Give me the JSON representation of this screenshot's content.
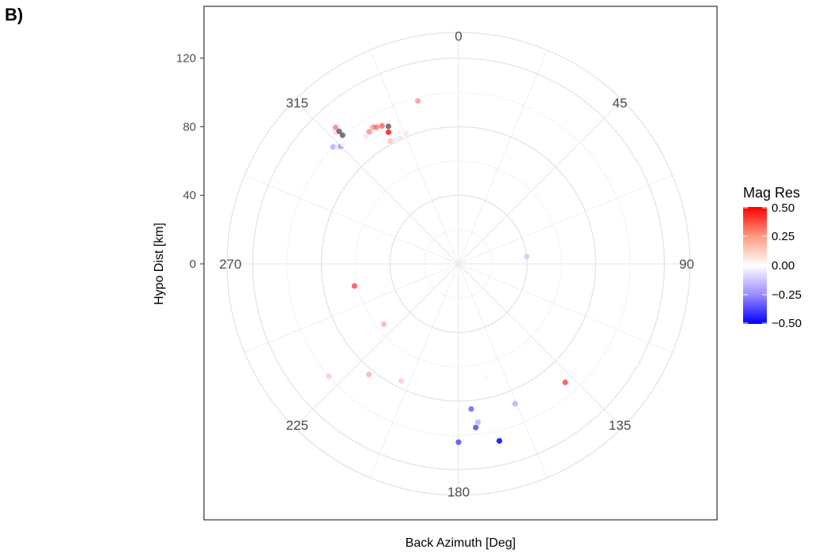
{
  "panel_label": "B)",
  "chart_data": {
    "type": "scatter",
    "coordinate_system": "polar",
    "xlabel": "Back Azimuth [Deg]",
    "ylabel": "Hypo Dist [km]",
    "y_ticks": [
      0,
      40,
      80,
      120
    ],
    "y_tick_labels": [
      "0",
      "40",
      "80",
      "120"
    ],
    "angle_ticks": [
      0,
      45,
      90,
      135,
      180,
      225,
      270,
      315
    ],
    "angle_tick_labels": [
      "0",
      "45",
      "90",
      "135",
      "180",
      "225",
      "270",
      "315"
    ],
    "legend": {
      "title": "Mag Res",
      "breaks": [
        0.5,
        0.25,
        0.0,
        -0.25,
        -0.5
      ],
      "labels": [
        "0.50",
        "0.25",
        "0.00",
        "−0.25",
        "−0.50"
      ],
      "low_color": "#0000ff",
      "mid_color": "#ffffff",
      "high_color": "#ff0000",
      "na_color": "#606060"
    },
    "points": [
      {
        "az": 346,
        "dist": 98,
        "res": 0.2
      },
      {
        "az": 318,
        "dist": 107,
        "res": 0.25
      },
      {
        "az": 317,
        "dist": 105,
        "res": 0.08
      },
      {
        "az": 318,
        "dist": 104,
        "res": null
      },
      {
        "az": 318,
        "dist": 101,
        "res": null
      },
      {
        "az": 313,
        "dist": 100,
        "res": -0.15
      },
      {
        "az": 314,
        "dist": 98,
        "res": -0.05
      },
      {
        "az": 315,
        "dist": 97,
        "res": -0.2
      },
      {
        "az": 316,
        "dist": 97,
        "res": 0.02
      },
      {
        "az": 324,
        "dist": 92,
        "res": 0.05
      },
      {
        "az": 326,
        "dist": 93,
        "res": 0.22
      },
      {
        "az": 328,
        "dist": 94,
        "res": 0.2
      },
      {
        "az": 329,
        "dist": 93,
        "res": 0.28
      },
      {
        "az": 331,
        "dist": 92,
        "res": 0.3
      },
      {
        "az": 333,
        "dist": 90,
        "res": null
      },
      {
        "az": 332,
        "dist": 87,
        "res": 0.45
      },
      {
        "az": 331,
        "dist": 82,
        "res": 0.12
      },
      {
        "az": 335,
        "dist": 81,
        "res": 0.06
      },
      {
        "az": 338,
        "dist": 82,
        "res": 0.05
      },
      {
        "az": 84,
        "dist": 40,
        "res": -0.1
      },
      {
        "az": 258,
        "dist": 62,
        "res": 0.35
      },
      {
        "az": 231,
        "dist": 56,
        "res": 0.15
      },
      {
        "az": 229,
        "dist": 100,
        "res": 0.1
      },
      {
        "az": 219,
        "dist": 83,
        "res": 0.15
      },
      {
        "az": 206,
        "dist": 76,
        "res": 0.1
      },
      {
        "az": 166,
        "dist": 68,
        "res": 0.02
      },
      {
        "az": 138,
        "dist": 93,
        "res": 0.35
      },
      {
        "az": 158,
        "dist": 88,
        "res": -0.15
      },
      {
        "az": 175,
        "dist": 85,
        "res": -0.3
      },
      {
        "az": 173,
        "dist": 93,
        "res": -0.15
      },
      {
        "az": 174,
        "dist": 96,
        "res": -0.35
      },
      {
        "az": 180,
        "dist": 104,
        "res": -0.35
      },
      {
        "az": 167,
        "dist": 106,
        "res": -0.5
      }
    ]
  }
}
